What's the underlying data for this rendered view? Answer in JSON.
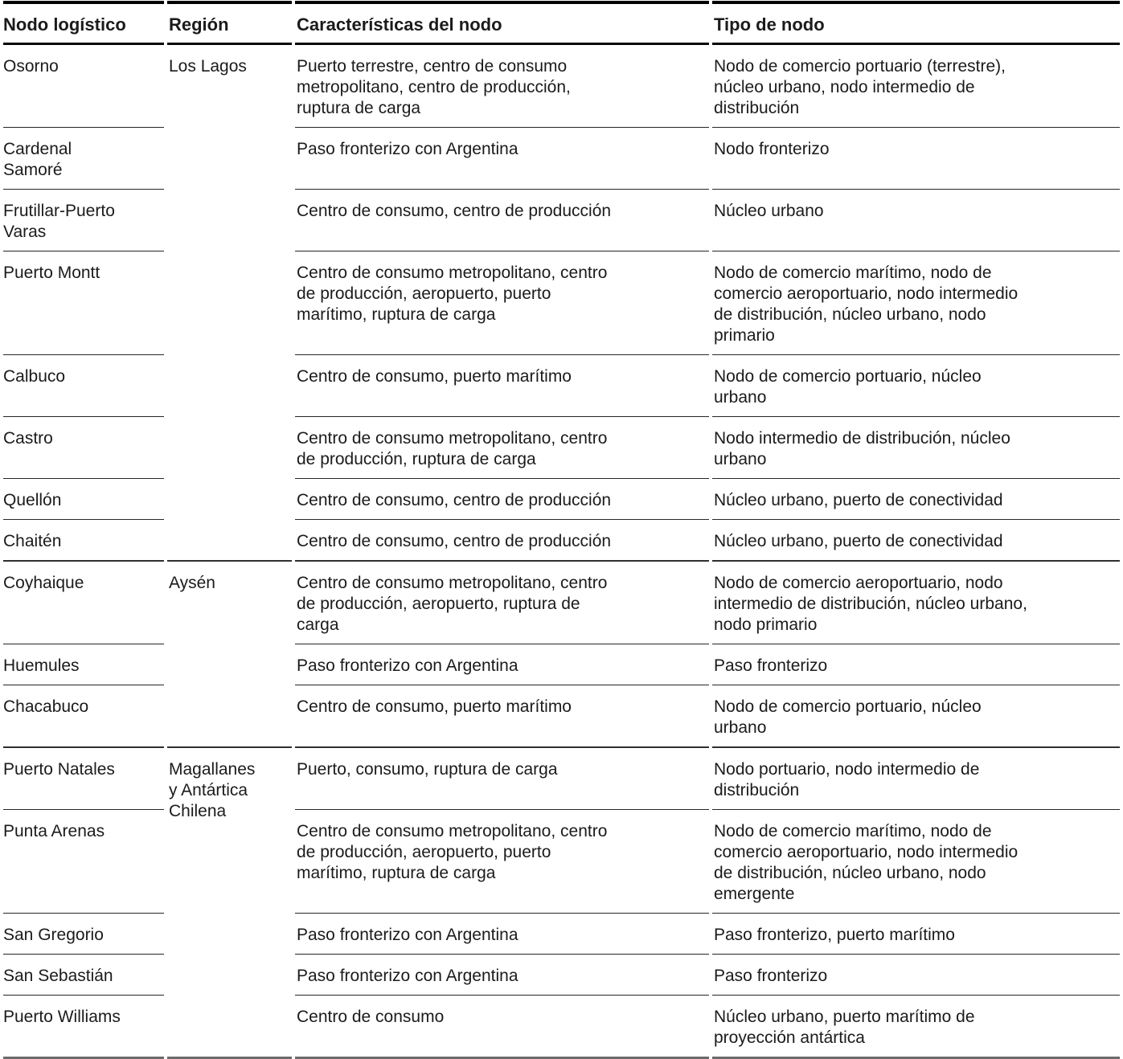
{
  "page": {
    "background_color": "#ffffff",
    "text_color": "#1b1b1b",
    "rule_colors": {
      "header_rule": "#000000",
      "row_rule": "#262626",
      "group_rule": "#2f2f2f",
      "bottom_rule": "#6b6b6b"
    }
  },
  "table": {
    "columns": [
      "Nodo logístico",
      "Región",
      "Características del nodo",
      "Tipo de nodo"
    ],
    "groups": [
      {
        "region": "Los Lagos",
        "rows": [
          {
            "nodo": "Osorno",
            "caracteristicas": "Puerto terrestre, centro de consumo metropolitano, centro de producción, ruptura de carga",
            "tipo": "Nodo de comercio portuario (terrestre), núcleo urbano, nodo intermedio de distribución"
          },
          {
            "nodo": "Cardenal Samoré",
            "caracteristicas": "Paso fronterizo con Argentina",
            "tipo": "Nodo fronterizo"
          },
          {
            "nodo": "Frutillar-Puerto Varas",
            "caracteristicas": "Centro de consumo, centro de producción",
            "tipo": "Núcleo urbano"
          },
          {
            "nodo": "Puerto Montt",
            "caracteristicas": "Centro de consumo metropolitano, centro de producción, aeropuerto, puerto marítimo, ruptura de carga",
            "tipo": "Nodo de comercio marítimo, nodo de comercio aeroportuario, nodo intermedio de distribución, núcleo urbano, nodo primario"
          },
          {
            "nodo": "Calbuco",
            "caracteristicas": "Centro de consumo, puerto marítimo",
            "tipo": "Nodo de comercio portuario, núcleo urbano"
          },
          {
            "nodo": "Castro",
            "caracteristicas": "Centro de consumo metropolitano, centro de producción, ruptura de carga",
            "tipo": "Nodo intermedio de distribución, núcleo urbano"
          },
          {
            "nodo": "Quellón",
            "caracteristicas": "Centro de consumo, centro de producción",
            "tipo": "Núcleo urbano, puerto de conectividad"
          },
          {
            "nodo": "Chaitén",
            "caracteristicas": "Centro de consumo, centro de producción",
            "tipo": "Núcleo urbano, puerto de conectividad"
          }
        ]
      },
      {
        "region": "Aysén",
        "rows": [
          {
            "nodo": "Coyhaique",
            "caracteristicas": "Centro de consumo metropolitano, centro de producción, aeropuerto, ruptura de carga",
            "tipo": "Nodo de comercio aeroportuario, nodo intermedio de distribución, núcleo urbano, nodo primario"
          },
          {
            "nodo": "Huemules",
            "caracteristicas": "Paso fronterizo con Argentina",
            "tipo": "Paso fronterizo"
          },
          {
            "nodo": "Chacabuco",
            "caracteristicas": "Centro de consumo, puerto marítimo",
            "tipo": "Nodo de comercio portuario, núcleo urbano"
          }
        ]
      },
      {
        "region": "Magallanes y Antártica Chilena",
        "rows": [
          {
            "nodo": "Puerto Natales",
            "caracteristicas": "Puerto, consumo, ruptura de carga",
            "tipo": "Nodo portuario, nodo intermedio de distribución"
          },
          {
            "nodo": "Punta Arenas",
            "caracteristicas": "Centro de consumo metropolitano, centro de producción, aeropuerto, puerto marítimo, ruptura de carga",
            "tipo": "Nodo de comercio marítimo, nodo de comercio aeroportuario, nodo intermedio de distribución, núcleo urbano, nodo emergente"
          },
          {
            "nodo": "San Gregorio",
            "caracteristicas": "Paso fronterizo con Argentina",
            "tipo": "Paso fronterizo, puerto marítimo"
          },
          {
            "nodo": "San Sebastián",
            "caracteristicas": "Paso fronterizo con Argentina",
            "tipo": "Paso fronterizo"
          },
          {
            "nodo": "Puerto Williams",
            "caracteristicas": "Centro de consumo",
            "tipo": "Núcleo urbano, puerto marítimo de proyección antártica"
          }
        ]
      }
    ]
  }
}
